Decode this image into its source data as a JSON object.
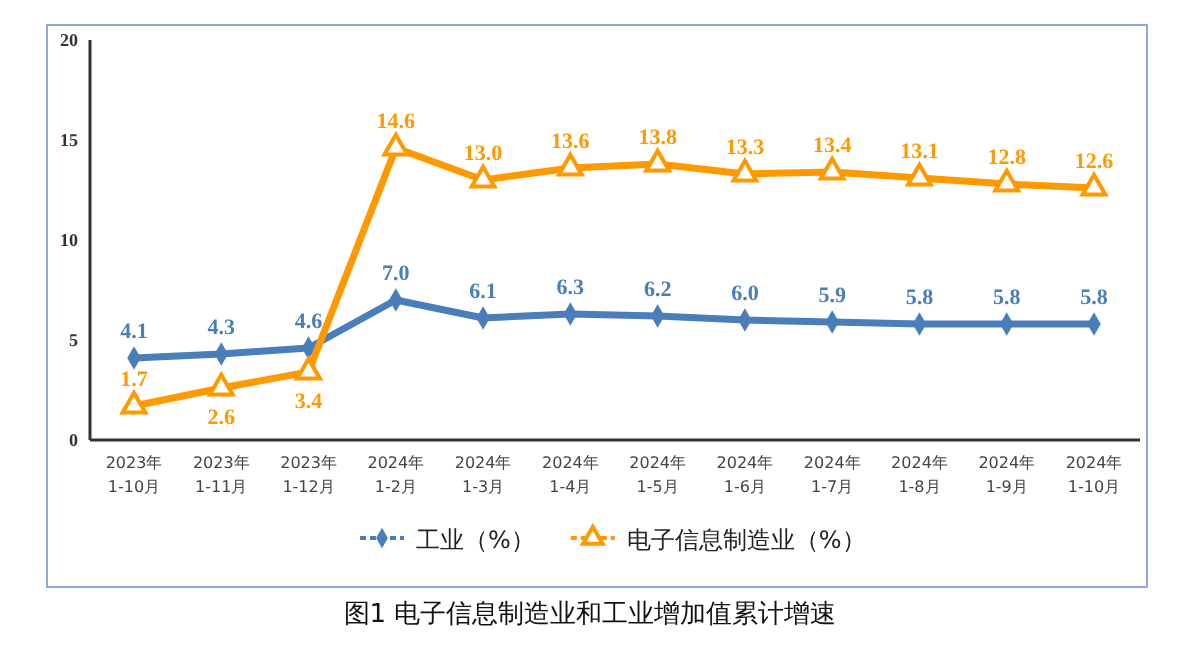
{
  "chart_data": {
    "type": "line",
    "title": "图1  电子信息制造业和工业增加值累计增速",
    "categories": [
      "2023年\n1-10月",
      "2023年\n1-11月",
      "2023年\n1-12月",
      "2024年\n1-2月",
      "2024年\n1-3月",
      "2024年\n1-4月",
      "2024年\n1-5月",
      "2024年\n1-6月",
      "2024年\n1-7月",
      "2024年\n1-8月",
      "2024年\n1-9月",
      "2024年\n1-10月"
    ],
    "series": [
      {
        "name": "工业（%）",
        "color": "#4a7ebb",
        "marker": "diamond",
        "values": [
          4.1,
          4.3,
          4.6,
          7.0,
          6.1,
          6.3,
          6.2,
          6.0,
          5.9,
          5.8,
          5.8,
          5.8
        ],
        "value_labels": [
          "4.1",
          "4.3",
          "4.6",
          "7.0",
          "6.1",
          "6.3",
          "6.2",
          "6.0",
          "5.9",
          "5.8",
          "5.8",
          "5.8"
        ]
      },
      {
        "name": "电子信息制造业（%）",
        "color": "#ff9900",
        "marker": "triangle",
        "values": [
          1.7,
          2.6,
          3.4,
          14.6,
          13.0,
          13.6,
          13.8,
          13.3,
          13.4,
          13.1,
          12.8,
          12.6
        ],
        "value_labels": [
          "1.7",
          "2.6",
          "3.4",
          "14.6",
          "13.0",
          "13.6",
          "13.8",
          "13.3",
          "13.4",
          "13.1",
          "12.8",
          "12.6"
        ]
      }
    ],
    "ylim": [
      0,
      20
    ],
    "yticks": [
      0,
      5,
      10,
      15,
      20
    ],
    "grid": false,
    "legend": "bottom",
    "line_style": "solid"
  }
}
